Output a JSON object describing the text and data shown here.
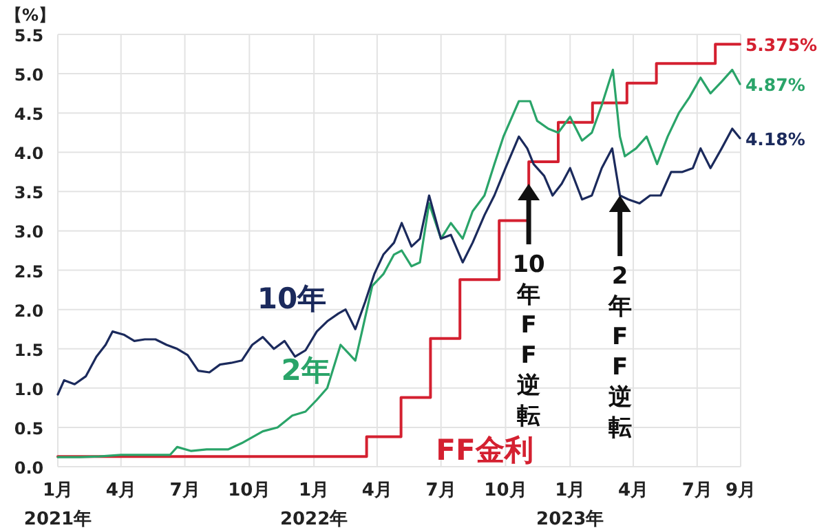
{
  "chart_data": {
    "type": "line",
    "ylabel": "【%】",
    "xlim": [
      "2021-01-01",
      "2023-09-01"
    ],
    "xticks": [
      {
        "value": "2021-01-01",
        "label": "1月\n2021年"
      },
      {
        "value": "2021-04-01",
        "label": "4月"
      },
      {
        "value": "2021-07-01",
        "label": "7月"
      },
      {
        "value": "2021-10-01",
        "label": "10月"
      },
      {
        "value": "2022-01-01",
        "label": "1月\n2022年"
      },
      {
        "value": "2022-04-01",
        "label": "4月"
      },
      {
        "value": "2022-07-01",
        "label": "7月"
      },
      {
        "value": "2022-10-01",
        "label": "10月"
      },
      {
        "value": "2023-01-01",
        "label": "1月\n2023年"
      },
      {
        "value": "2023-04-01",
        "label": "4月"
      },
      {
        "value": "2023-07-01",
        "label": "7月"
      },
      {
        "value": "2023-09-01",
        "label": "9月"
      }
    ],
    "ylim": [
      0,
      5.5
    ],
    "yticks": [
      {
        "value": 0,
        "label": "0.0"
      },
      0.5,
      {
        "value": 1,
        "label": "1.0"
      },
      1.5,
      {
        "value": 2,
        "label": "2.0"
      },
      2.5,
      {
        "value": 3,
        "label": "3.0"
      },
      3.5,
      {
        "value": 4,
        "label": "4.0"
      },
      4.5,
      {
        "value": 5,
        "label": "5.0"
      },
      5.5
    ],
    "grid": true,
    "legend": false,
    "series": [
      {
        "name": "10年",
        "color": "#1b2a5c",
        "x": [
          "2021-01-01",
          "2021-01-10",
          "2021-01-25",
          "2021-02-10",
          "2021-02-25",
          "2021-03-10",
          "2021-03-20",
          "2021-04-05",
          "2021-04-20",
          "2021-05-05",
          "2021-05-20",
          "2021-06-05",
          "2021-06-20",
          "2021-07-05",
          "2021-07-20",
          "2021-08-05",
          "2021-08-20",
          "2021-09-05",
          "2021-09-20",
          "2021-10-05",
          "2021-10-20",
          "2021-11-05",
          "2021-11-20",
          "2021-12-05",
          "2021-12-20",
          "2022-01-05",
          "2022-01-20",
          "2022-02-05",
          "2022-02-15",
          "2022-03-01",
          "2022-03-15",
          "2022-03-28",
          "2022-04-10",
          "2022-04-25",
          "2022-05-06",
          "2022-05-20",
          "2022-06-01",
          "2022-06-14",
          "2022-07-01",
          "2022-07-15",
          "2022-08-01",
          "2022-08-15",
          "2022-09-01",
          "2022-09-15",
          "2022-10-01",
          "2022-10-20",
          "2022-11-01",
          "2022-11-10",
          "2022-11-25",
          "2022-12-07",
          "2022-12-20",
          "2023-01-01",
          "2023-01-18",
          "2023-02-01",
          "2023-02-15",
          "2023-03-02",
          "2023-03-13",
          "2023-03-25",
          "2023-04-10",
          "2023-04-25",
          "2023-05-10",
          "2023-05-25",
          "2023-06-10",
          "2023-06-25",
          "2023-07-06",
          "2023-07-20",
          "2023-08-05",
          "2023-08-20",
          "2023-08-31"
        ],
        "values": [
          0.92,
          1.1,
          1.05,
          1.15,
          1.4,
          1.55,
          1.72,
          1.68,
          1.6,
          1.62,
          1.62,
          1.55,
          1.5,
          1.42,
          1.22,
          1.2,
          1.3,
          1.32,
          1.35,
          1.55,
          1.65,
          1.5,
          1.6,
          1.4,
          1.48,
          1.72,
          1.85,
          1.95,
          2.0,
          1.75,
          2.1,
          2.45,
          2.7,
          2.85,
          3.1,
          2.8,
          2.9,
          3.45,
          2.9,
          2.95,
          2.6,
          2.85,
          3.2,
          3.45,
          3.8,
          4.2,
          4.05,
          3.85,
          3.7,
          3.45,
          3.6,
          3.8,
          3.4,
          3.45,
          3.8,
          4.05,
          3.45,
          3.4,
          3.35,
          3.45,
          3.45,
          3.75,
          3.75,
          3.8,
          4.05,
          3.8,
          4.05,
          4.3,
          4.18
        ]
      },
      {
        "name": "2年",
        "color": "#2aa469",
        "x": [
          "2021-01-01",
          "2021-02-01",
          "2021-03-01",
          "2021-04-01",
          "2021-05-01",
          "2021-06-10",
          "2021-06-20",
          "2021-07-10",
          "2021-08-01",
          "2021-09-01",
          "2021-09-20",
          "2021-10-20",
          "2021-11-10",
          "2021-12-01",
          "2021-12-20",
          "2022-01-05",
          "2022-01-20",
          "2022-02-08",
          "2022-03-01",
          "2022-03-10",
          "2022-03-25",
          "2022-04-10",
          "2022-04-25",
          "2022-05-06",
          "2022-05-20",
          "2022-06-01",
          "2022-06-14",
          "2022-07-01",
          "2022-07-15",
          "2022-08-01",
          "2022-08-15",
          "2022-09-01",
          "2022-09-15",
          "2022-09-28",
          "2022-10-20",
          "2022-11-05",
          "2022-11-15",
          "2022-12-01",
          "2022-12-15",
          "2023-01-01",
          "2023-01-18",
          "2023-02-01",
          "2023-02-15",
          "2023-03-03",
          "2023-03-13",
          "2023-03-20",
          "2023-04-05",
          "2023-04-20",
          "2023-05-05",
          "2023-05-20",
          "2023-06-05",
          "2023-06-20",
          "2023-07-06",
          "2023-07-20",
          "2023-08-05",
          "2023-08-20",
          "2023-08-31"
        ],
        "values": [
          0.12,
          0.12,
          0.13,
          0.15,
          0.15,
          0.15,
          0.25,
          0.2,
          0.22,
          0.22,
          0.3,
          0.45,
          0.5,
          0.65,
          0.7,
          0.85,
          1.0,
          1.55,
          1.35,
          1.7,
          2.3,
          2.45,
          2.7,
          2.75,
          2.55,
          2.6,
          3.35,
          2.9,
          3.1,
          2.9,
          3.25,
          3.45,
          3.85,
          4.2,
          4.65,
          4.65,
          4.4,
          4.3,
          4.25,
          4.45,
          4.15,
          4.25,
          4.6,
          5.05,
          4.2,
          3.95,
          4.05,
          4.2,
          3.85,
          4.2,
          4.5,
          4.7,
          4.95,
          4.75,
          4.9,
          5.05,
          4.87
        ]
      },
      {
        "name": "FF金利",
        "type": "step",
        "color": "#d42030",
        "x": [
          "2021-01-01",
          "2022-03-17",
          "2022-05-05",
          "2022-06-16",
          "2022-07-28",
          "2022-09-22",
          "2022-11-03",
          "2022-12-15",
          "2023-02-02",
          "2023-03-23",
          "2023-05-04",
          "2023-07-27",
          "2023-08-31"
        ],
        "values": [
          0.13,
          0.38,
          0.88,
          1.63,
          2.38,
          3.13,
          3.88,
          4.38,
          4.63,
          4.88,
          5.13,
          5.375,
          5.375
        ]
      }
    ],
    "annotations": [
      {
        "text": "5.375%",
        "x": "2023-08-31",
        "y": 5.375
      },
      {
        "text": "4.87%",
        "x": "2023-08-31",
        "y": 4.87
      },
      {
        "text": "4.18%",
        "x": "2023-08-31",
        "y": 4.18
      },
      {
        "text": "10年FF逆転",
        "x": "2022-11-03",
        "y": 3.6
      },
      {
        "text": "2年FF逆転",
        "x": "2023-03-13",
        "y": 3.45
      }
    ]
  }
}
